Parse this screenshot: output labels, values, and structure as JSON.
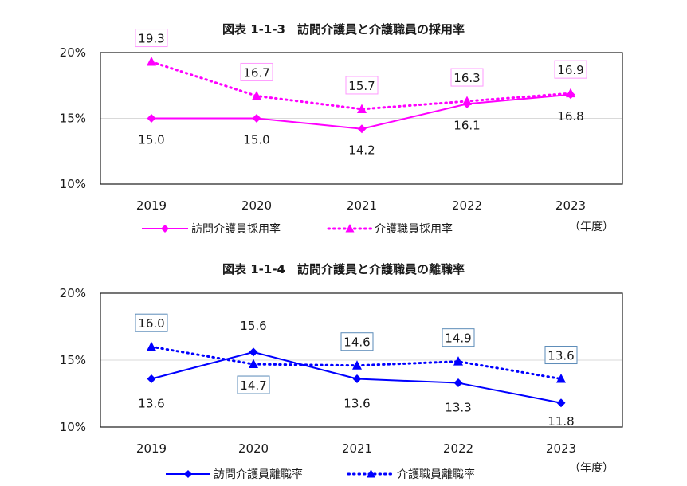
{
  "chart_data": [
    {
      "type": "line",
      "title": "図表 1-1-3　訪問介護員と介護職員の採用率",
      "categories": [
        "2019",
        "2020",
        "2021",
        "2022",
        "2023"
      ],
      "unit_label": "（年度）",
      "yticks": [
        "10%",
        "15%",
        "20%"
      ],
      "ylim": [
        10,
        20
      ],
      "grid": true,
      "series": [
        {
          "name": "訪問介護員採用率",
          "values": [
            15.0,
            15.0,
            14.2,
            16.1,
            16.8
          ],
          "labels": [
            "15.0",
            "15.0",
            "14.2",
            "16.1",
            "16.8"
          ],
          "style": "solid",
          "marker": "diamond",
          "color": "#ff00ff"
        },
        {
          "name": "介護職員採用率",
          "values": [
            19.3,
            16.7,
            15.7,
            16.3,
            16.9
          ],
          "labels": [
            "19.3",
            "16.7",
            "15.7",
            "16.3",
            "16.9"
          ],
          "style": "dotted",
          "marker": "triangle",
          "color": "#ff00ff"
        }
      ]
    },
    {
      "type": "line",
      "title": "図表 1-1-4　訪問介護員と介護職員の離職率",
      "categories": [
        "2019",
        "2020",
        "2021",
        "2022",
        "2023"
      ],
      "unit_label": "（年度）",
      "yticks": [
        "10%",
        "15%",
        "20%"
      ],
      "ylim": [
        10,
        20
      ],
      "grid": true,
      "series": [
        {
          "name": "訪問介護員離職率",
          "values": [
            13.6,
            15.6,
            13.6,
            13.3,
            11.8
          ],
          "labels": [
            "13.6",
            "15.6",
            "13.6",
            "13.3",
            "11.8"
          ],
          "style": "solid",
          "marker": "diamond",
          "color": "#0000ff"
        },
        {
          "name": "介護職員離職率",
          "values": [
            16.0,
            14.7,
            14.6,
            14.9,
            13.6
          ],
          "labels": [
            "16.0",
            "14.7",
            "14.6",
            "14.9",
            "13.6"
          ],
          "style": "dotted",
          "marker": "triangle",
          "color": "#0000ff"
        }
      ]
    }
  ],
  "colors": {
    "chart1_label_box": "#ff99ff",
    "chart2_label_box": "#5b8bb8",
    "grid": "#d9d9d9",
    "frame": "#1a1a1a"
  }
}
